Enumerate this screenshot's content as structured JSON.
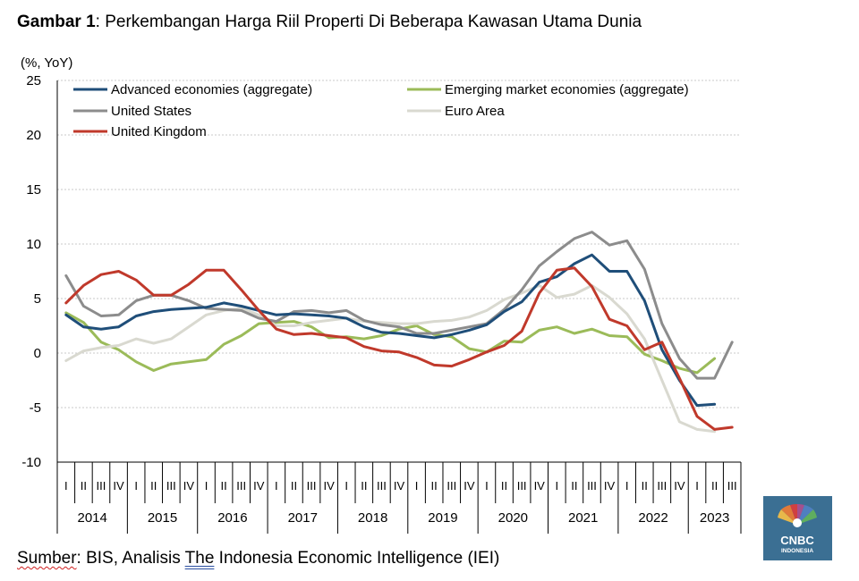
{
  "title": {
    "bold": "Gambar 1",
    "rest": ": Perkembangan Harga Riil Properti Di Beberapa Kawasan Utama Dunia"
  },
  "source": {
    "prefix": "Sumber",
    "middle": ": BIS, Analisis ",
    "the": "The",
    "suffix": " Indonesia Economic Intelligence (IEI)"
  },
  "logo": {
    "line1": "CNBC",
    "line2": "INDONESIA"
  },
  "chart_data": {
    "type": "line",
    "yunit": "(%, YoY)",
    "ylim": [
      -10,
      25
    ],
    "yticks": [
      25,
      20,
      15,
      10,
      5,
      0,
      -5,
      -10
    ],
    "grid": "horizontal dashed",
    "legend": "top, two columns",
    "years": [
      "2014",
      "2015",
      "2016",
      "2017",
      "2018",
      "2019",
      "2020",
      "2021",
      "2022",
      "2023"
    ],
    "quarters": [
      "I",
      "II",
      "III",
      "IV",
      "I",
      "II",
      "III",
      "IV",
      "I",
      "II",
      "III",
      "IV",
      "I",
      "II",
      "III",
      "IV",
      "I",
      "II",
      "III",
      "IV",
      "I",
      "II",
      "III",
      "IV",
      "I",
      "II",
      "III",
      "IV",
      "I",
      "II",
      "III",
      "IV",
      "I",
      "II",
      "III",
      "IV",
      "I",
      "II",
      "III"
    ],
    "series": [
      {
        "name": "Advanced economies (aggregate)",
        "color": "#1f4e79",
        "values": [
          3.5,
          2.4,
          2.2,
          2.4,
          3.4,
          3.8,
          4.0,
          4.1,
          4.2,
          4.6,
          4.3,
          3.9,
          3.5,
          3.6,
          3.5,
          3.4,
          3.2,
          2.4,
          1.9,
          1.8,
          1.6,
          1.4,
          1.7,
          2.1,
          2.6,
          3.8,
          4.7,
          6.5,
          7.0,
          8.2,
          9.0,
          7.5,
          7.5,
          4.8,
          0.3,
          -2.5,
          -4.8,
          -4.7,
          null
        ]
      },
      {
        "name": "Emerging market economies (aggregate)",
        "color": "#9bbb59",
        "values": [
          3.7,
          2.8,
          1.0,
          0.3,
          -0.8,
          -1.6,
          -1.0,
          -0.8,
          -0.6,
          0.8,
          1.6,
          2.7,
          2.8,
          2.9,
          2.4,
          1.4,
          1.5,
          1.3,
          1.6,
          2.2,
          2.5,
          1.7,
          1.5,
          0.4,
          0.1,
          1.1,
          1.0,
          2.1,
          2.4,
          1.8,
          2.2,
          1.6,
          1.5,
          -0.1,
          -0.7,
          -1.4,
          -1.8,
          -0.5,
          null
        ]
      },
      {
        "name": "United States",
        "color": "#8c8c8c",
        "values": [
          7.1,
          4.3,
          3.4,
          3.5,
          4.8,
          5.3,
          5.3,
          4.8,
          4.1,
          4.0,
          3.9,
          3.2,
          2.9,
          3.8,
          3.9,
          3.7,
          3.9,
          3.0,
          2.6,
          2.4,
          1.8,
          1.8,
          2.1,
          2.4,
          2.7,
          4.0,
          5.8,
          8.0,
          9.3,
          10.5,
          11.1,
          9.9,
          10.3,
          7.7,
          2.7,
          -0.5,
          -2.3,
          -2.3,
          1.0
        ]
      },
      {
        "name": "Euro Area",
        "color": "#d9d9d0",
        "values": [
          -0.7,
          0.2,
          0.5,
          0.7,
          1.3,
          0.9,
          1.3,
          2.4,
          3.5,
          3.9,
          4.1,
          3.5,
          2.5,
          2.5,
          2.8,
          3.0,
          3.2,
          2.9,
          2.8,
          2.7,
          2.7,
          2.9,
          3.0,
          3.3,
          3.9,
          4.9,
          5.5,
          6.2,
          5.1,
          5.4,
          6.2,
          5.1,
          3.6,
          1.3,
          -2.5,
          -6.3,
          -7.0,
          -7.2,
          null
        ]
      },
      {
        "name": "United Kingdom",
        "color": "#c0392b",
        "values": [
          4.6,
          6.2,
          7.2,
          7.5,
          6.7,
          5.3,
          5.3,
          6.3,
          7.6,
          7.6,
          5.8,
          3.9,
          2.2,
          1.7,
          1.8,
          1.6,
          1.4,
          0.6,
          0.2,
          0.1,
          -0.4,
          -1.1,
          -1.2,
          -0.6,
          0.1,
          0.7,
          2.0,
          5.5,
          7.6,
          7.8,
          6.1,
          3.1,
          2.5,
          0.3,
          1.0,
          -2.3,
          -5.8,
          -7.0,
          -6.8
        ]
      }
    ]
  }
}
